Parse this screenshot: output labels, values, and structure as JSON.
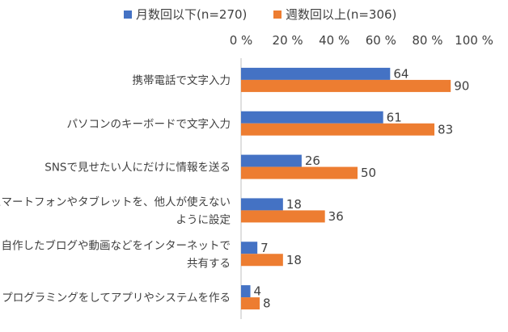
{
  "chart_data": {
    "type": "bar",
    "orientation": "horizontal",
    "categories": [
      [
        "携帯電話で文字入力"
      ],
      [
        "パソコンのキーボードで文字入力"
      ],
      [
        "SNSで見せたい人にだけに情報を送る"
      ],
      [
        "スマートフォンやタブレットを、他人が使えない",
        "ように設定"
      ],
      [
        "自作したブログや動画などをインターネットで",
        "共有する"
      ],
      [
        "プログラミングをしてアプリやシステムを作る"
      ]
    ],
    "series": [
      {
        "name": "月数回以下(n=270)",
        "color": "#4472C4",
        "values": [
          64,
          61,
          26,
          18,
          7,
          4
        ]
      },
      {
        "name": "週数回以上(n=306)",
        "color": "#ED7D31",
        "values": [
          90,
          83,
          50,
          36,
          18,
          8
        ]
      }
    ],
    "xlim": [
      0,
      100
    ],
    "xticks": [
      0,
      20,
      40,
      60,
      80,
      100
    ],
    "xtick_labels": [
      "0 %",
      "20 %",
      "40 %",
      "60 %",
      "80 %",
      "100 %"
    ],
    "x_axis_position": "top",
    "legend_position": "top",
    "grid": false
  }
}
